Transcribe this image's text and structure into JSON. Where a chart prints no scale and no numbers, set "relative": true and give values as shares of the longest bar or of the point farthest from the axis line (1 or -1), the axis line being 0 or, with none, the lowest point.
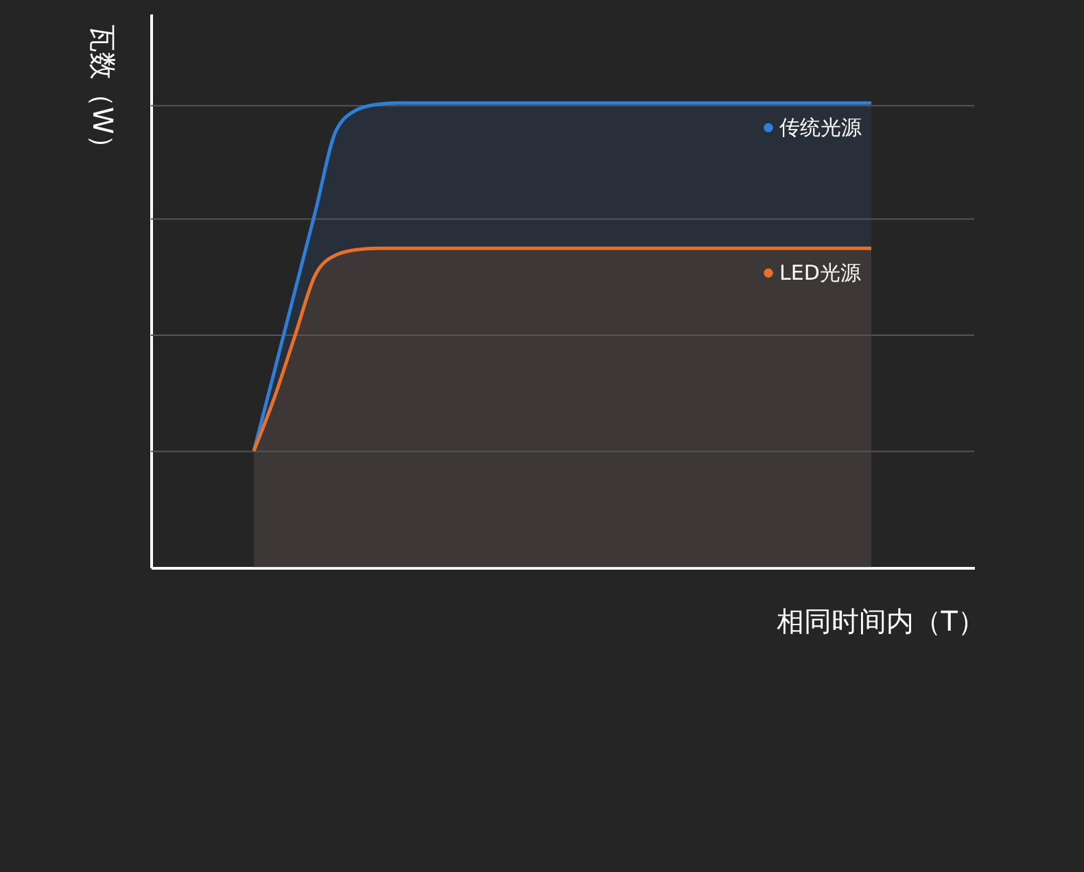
{
  "chart_data": {
    "type": "area",
    "relative": true,
    "xlabel": "相同时间内（T）",
    "ylabel": "瓦数（W）",
    "categories": [
      null,
      null,
      null,
      null,
      null,
      null,
      null,
      null,
      null,
      null,
      null,
      null,
      null,
      null,
      null,
      null,
      null,
      null,
      null,
      null,
      null,
      null,
      null,
      null,
      null,
      null,
      null,
      null,
      null,
      null,
      null
    ],
    "series": [
      {
        "name": "传统光源",
        "color": "#2e7fd9",
        "values": [
          0.251,
          0.423,
          0.596,
          0.768,
          0.941,
          0.985,
          0.997,
          1,
          1,
          1,
          1,
          1,
          1,
          1,
          1,
          1,
          1,
          1,
          1,
          1,
          1,
          1,
          1,
          1,
          1,
          1,
          1,
          1,
          1,
          1,
          1
        ]
      },
      {
        "name": "LED光源",
        "color": "#e8702a",
        "values": [
          0.251,
          0.366,
          0.499,
          0.631,
          0.673,
          0.684,
          0.687,
          0.687,
          0.687,
          0.687,
          0.687,
          0.687,
          0.687,
          0.687,
          0.687,
          0.687,
          0.687,
          0.687,
          0.687,
          0.687,
          0.687,
          0.687,
          0.687,
          0.687,
          0.687,
          0.687,
          0.687,
          0.687,
          0.687,
          0.687,
          0.687
        ]
      }
    ],
    "ref_lines": [
      {
        "axis": "y",
        "value": 0.25,
        "color": "#555555"
      },
      {
        "axis": "y",
        "value": 0.5,
        "color": "#555555"
      },
      {
        "axis": "y",
        "value": 0.75,
        "color": "#555555"
      },
      {
        "axis": "y",
        "value": 0.994,
        "color": "#555555"
      }
    ],
    "legend": "top right",
    "grid": false
  }
}
